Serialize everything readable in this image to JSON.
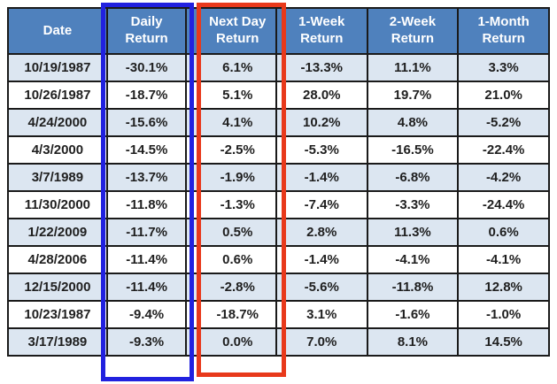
{
  "colors": {
    "header_bg": "#4F81BD",
    "header_text": "#FFFFFF",
    "row_stripe": "#DCE6F1",
    "row_plain": "#FFFFFF",
    "grid_border": "#1A1A1A",
    "cell_text": "#1F1F1F",
    "highlight_blue": "#2121DF",
    "highlight_red": "#E8391B"
  },
  "table": {
    "headers": [
      "Date",
      "Daily Return",
      "Next Day Return",
      "1-Week Return",
      "2-Week Return",
      "1-Month Return"
    ],
    "rows": [
      {
        "date": "10/19/1987",
        "daily": "-30.1%",
        "next_day": "6.1%",
        "week1": "-13.3%",
        "week2": "11.1%",
        "month1": "3.3%"
      },
      {
        "date": "10/26/1987",
        "daily": "-18.7%",
        "next_day": "5.1%",
        "week1": "28.0%",
        "week2": "19.7%",
        "month1": "21.0%"
      },
      {
        "date": "4/24/2000",
        "daily": "-15.6%",
        "next_day": "4.1%",
        "week1": "10.2%",
        "week2": "4.8%",
        "month1": "-5.2%"
      },
      {
        "date": "4/3/2000",
        "daily": "-14.5%",
        "next_day": "-2.5%",
        "week1": "-5.3%",
        "week2": "-16.5%",
        "month1": "-22.4%"
      },
      {
        "date": "3/7/1989",
        "daily": "-13.7%",
        "next_day": "-1.9%",
        "week1": "-1.4%",
        "week2": "-6.8%",
        "month1": "-4.2%"
      },
      {
        "date": "11/30/2000",
        "daily": "-11.8%",
        "next_day": "-1.3%",
        "week1": "-7.4%",
        "week2": "-3.3%",
        "month1": "-24.4%"
      },
      {
        "date": "1/22/2009",
        "daily": "-11.7%",
        "next_day": "0.5%",
        "week1": "2.8%",
        "week2": "11.3%",
        "month1": "0.6%"
      },
      {
        "date": "4/28/2006",
        "daily": "-11.4%",
        "next_day": "0.6%",
        "week1": "-1.4%",
        "week2": "-4.1%",
        "month1": "-4.1%"
      },
      {
        "date": "12/15/2000",
        "daily": "-11.4%",
        "next_day": "-2.8%",
        "week1": "-5.6%",
        "week2": "-11.8%",
        "month1": "12.8%"
      },
      {
        "date": "10/23/1987",
        "daily": "-9.4%",
        "next_day": "-18.7%",
        "week1": "3.1%",
        "week2": "-1.6%",
        "month1": "-1.0%"
      },
      {
        "date": "3/17/1989",
        "daily": "-9.3%",
        "next_day": "0.0%",
        "week1": "7.0%",
        "week2": "8.1%",
        "month1": "14.5%"
      }
    ]
  },
  "chart_data": {
    "type": "table",
    "columns": [
      "Date",
      "Daily Return",
      "Next Day Return",
      "1-Week Return",
      "2-Week Return",
      "1-Month Return"
    ],
    "rows": [
      [
        "10/19/1987",
        "-30.1%",
        "6.1%",
        "-13.3%",
        "11.1%",
        "3.3%"
      ],
      [
        "10/26/1987",
        "-18.7%",
        "5.1%",
        "28.0%",
        "19.7%",
        "21.0%"
      ],
      [
        "4/24/2000",
        "-15.6%",
        "4.1%",
        "10.2%",
        "4.8%",
        "-5.2%"
      ],
      [
        "4/3/2000",
        "-14.5%",
        "-2.5%",
        "-5.3%",
        "-16.5%",
        "-22.4%"
      ],
      [
        "3/7/1989",
        "-13.7%",
        "-1.9%",
        "-1.4%",
        "-6.8%",
        "-4.2%"
      ],
      [
        "11/30/2000",
        "-11.8%",
        "-1.3%",
        "-7.4%",
        "-3.3%",
        "-24.4%"
      ],
      [
        "1/22/2009",
        "-11.7%",
        "0.5%",
        "2.8%",
        "11.3%",
        "0.6%"
      ],
      [
        "4/28/2006",
        "-11.4%",
        "0.6%",
        "-1.4%",
        "-4.1%",
        "-4.1%"
      ],
      [
        "12/15/2000",
        "-11.4%",
        "-2.8%",
        "-5.6%",
        "-11.8%",
        "12.8%"
      ],
      [
        "10/23/1987",
        "-9.4%",
        "-18.7%",
        "3.1%",
        "-1.6%",
        "-1.0%"
      ],
      [
        "3/17/1989",
        "-9.3%",
        "0.0%",
        "7.0%",
        "8.1%",
        "14.5%"
      ]
    ],
    "highlights": [
      {
        "column": "Daily Return",
        "box_color": "#2121DF"
      },
      {
        "column": "Next Day Return",
        "box_color": "#E8391B"
      }
    ]
  }
}
